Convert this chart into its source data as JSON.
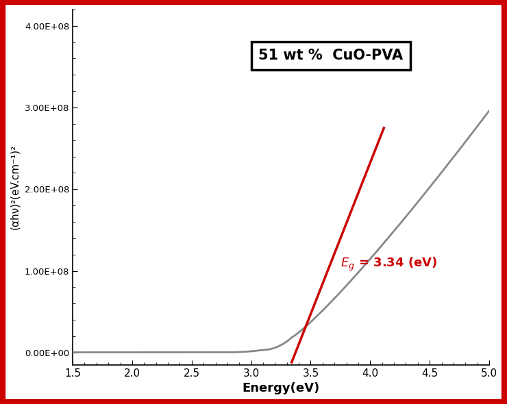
{
  "title": "51 wt %  CuO-PVA",
  "xlabel": "Energy(eV)",
  "ylabel": "(αhν)²(eV.cm⁻¹)²",
  "xlim": [
    1.5,
    5.0
  ],
  "ylim": [
    -15000000.0,
    420000000.0
  ],
  "yticks": [
    0.0,
    100000000.0,
    200000000.0,
    300000000.0,
    400000000.0
  ],
  "ytick_labels": [
    "0.00E+00",
    "1.00E+08",
    "2.00E+08",
    "3.00E+08",
    "4.00E+08"
  ],
  "xticks": [
    1.5,
    2.0,
    2.5,
    3.0,
    3.5,
    4.0,
    4.5,
    5.0
  ],
  "curve_color": "#888888",
  "line_color": "#cc0000",
  "bg_color": "#ffffff",
  "border_color": "#cc0000",
  "annotation_color": "#cc0000",
  "bandgap": 3.34,
  "line_x0": 3.34,
  "line_x1": 4.115,
  "line_y0": -12000000.0,
  "line_y1": 275000000.0
}
